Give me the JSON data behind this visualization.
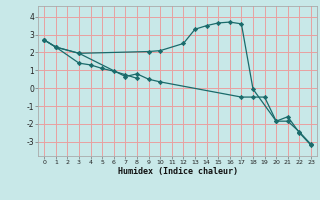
{
  "xlabel": "Humidex (Indice chaleur)",
  "bg_color": "#c8e8e8",
  "grid_color": "#e8a0a0",
  "line_color": "#1a6b6b",
  "xlim": [
    -0.5,
    23.5
  ],
  "ylim": [
    -3.8,
    4.6
  ],
  "yticks": [
    -3,
    -2,
    -1,
    0,
    1,
    2,
    3,
    4
  ],
  "xticks": [
    0,
    1,
    2,
    3,
    4,
    5,
    6,
    7,
    8,
    9,
    10,
    11,
    12,
    13,
    14,
    15,
    16,
    17,
    18,
    19,
    20,
    21,
    22,
    23
  ],
  "line1_x": [
    0,
    1,
    3,
    4,
    5,
    6,
    7,
    8
  ],
  "line1_y": [
    2.7,
    2.3,
    1.4,
    1.3,
    1.1,
    0.95,
    0.75,
    0.55
  ],
  "line2_x": [
    0,
    1,
    3,
    9,
    10,
    12,
    13,
    14,
    15,
    16,
    17,
    18,
    20,
    21,
    22,
    23
  ],
  "line2_y": [
    2.7,
    2.3,
    1.95,
    2.05,
    2.1,
    2.5,
    3.3,
    3.5,
    3.65,
    3.7,
    3.6,
    -0.05,
    -1.85,
    -1.6,
    -2.5,
    -3.2
  ],
  "line3_x": [
    0,
    1,
    3,
    7,
    8,
    9,
    10,
    17,
    18,
    19,
    20,
    21,
    22,
    23
  ],
  "line3_y": [
    2.7,
    2.3,
    1.95,
    0.65,
    0.8,
    0.5,
    0.35,
    -0.5,
    -0.5,
    -0.5,
    -1.85,
    -1.85,
    -2.45,
    -3.15
  ]
}
